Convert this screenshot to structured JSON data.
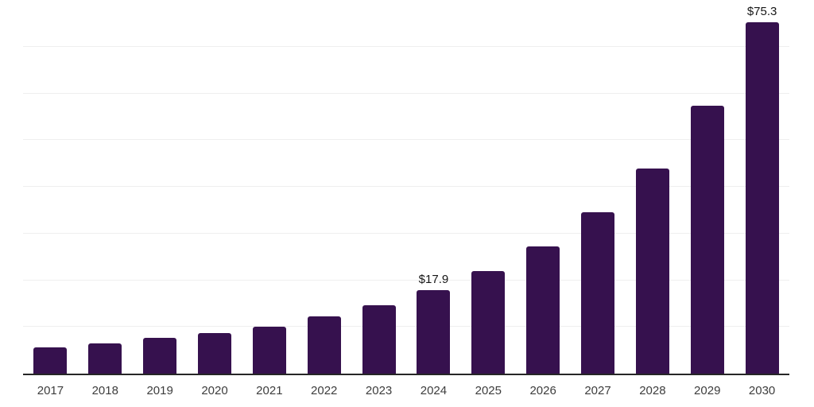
{
  "chart_data": {
    "type": "bar",
    "title": "",
    "xlabel": "",
    "ylabel": "",
    "categories": [
      "2017",
      "2018",
      "2019",
      "2020",
      "2021",
      "2022",
      "2023",
      "2024",
      "2025",
      "2026",
      "2027",
      "2028",
      "2029",
      "2030"
    ],
    "values": [
      5.7,
      6.5,
      7.6,
      8.7,
      10.1,
      12.2,
      14.6,
      17.9,
      21.9,
      27.3,
      34.5,
      44.0,
      57.3,
      75.3
    ],
    "bar_labels": {
      "2024": "$17.9",
      "2030": "$75.3"
    },
    "ylim": [
      0,
      80
    ],
    "grid_step": 10,
    "grid": true,
    "legend": false,
    "colors": {
      "bar": "#36114E",
      "gridline": "#efefef",
      "axis": "#262626",
      "value_label": "#161616",
      "tick_label": "#3d3d3d",
      "background": "#ffffff"
    }
  }
}
